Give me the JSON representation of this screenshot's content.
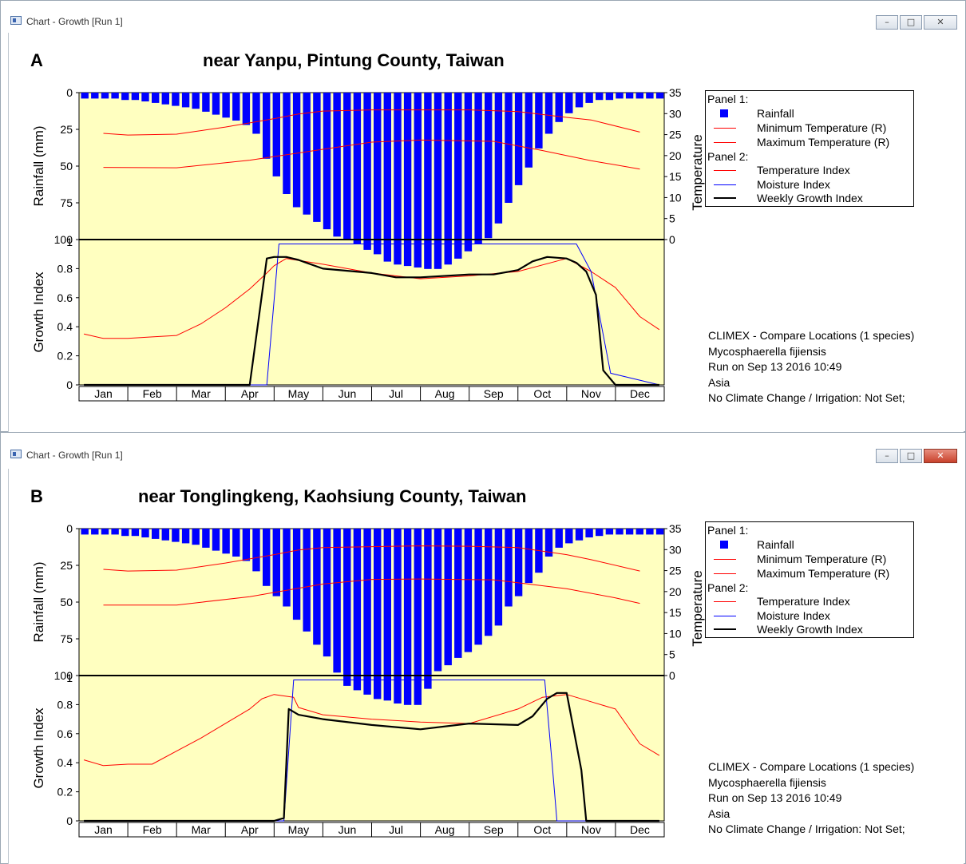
{
  "windows": [
    {
      "window_title": "Chart - Growth  [Run 1]",
      "panel_letter": "A",
      "chart_title": "near Yanpu, Pintung County, Taiwan",
      "info_lines": [
        "CLIMEX - Compare Locations (1 species)",
        "Mycosphaerella fijiensis",
        "Run on Sep 13 2016 10:49",
        "Asia",
        "No Climate Change / Irrigation: Not Set;"
      ]
    },
    {
      "window_title": "Chart - Growth  [Run 1]",
      "panel_letter": "B",
      "chart_title": "near Tonglingkeng, Kaohsiung County, Taiwan",
      "info_lines": [
        "CLIMEX - Compare Locations (1 species)",
        "Mycosphaerella fijiensis",
        "Run on Sep 13 2016 10:49",
        "Asia",
        "No Climate Change / Irrigation: Not Set;"
      ]
    }
  ],
  "legend": {
    "panel1_header": "Panel 1:",
    "panel2_header": "Panel 2:",
    "items": {
      "rainfall": "Rainfall",
      "min_temp": "Minimum Temperature (R)",
      "max_temp": "Maximum Temperature (R)",
      "temp_index": "Temperature Index",
      "moisture_index": "Moisture Index",
      "weekly_growth_index": "Weekly Growth Index"
    }
  },
  "colors": {
    "plot_bg": "#ffffc0",
    "rainfall": "#0000ff",
    "temperature": "#ff0000",
    "temperature_index": "#ff0000",
    "moisture_index": "#0000ff",
    "growth_index": "#000000"
  },
  "chart_data": [
    {
      "type": "line",
      "title": "near Yanpu, Pintung County, Taiwan",
      "categories": [
        "Jan",
        "Feb",
        "Mar",
        "Apr",
        "May",
        "Jun",
        "Jul",
        "Aug",
        "Sep",
        "Oct",
        "Nov",
        "Dec"
      ],
      "panel1": {
        "ylabel_left": "Rainfall (mm)",
        "ylim_left": [
          0,
          100
        ],
        "left_inverted": true,
        "yticks_left": [
          0,
          25,
          50,
          75,
          100
        ],
        "ylabel_right": "Temperature",
        "ylim_right": [
          0,
          35
        ],
        "yticks_right": [
          0,
          5,
          10,
          15,
          20,
          25,
          30,
          35
        ],
        "weekly_rainfall_mm": [
          4,
          4,
          4,
          4,
          5,
          5,
          6,
          7,
          8,
          9,
          10,
          11,
          13,
          15,
          17,
          19,
          22,
          28,
          45,
          57,
          69,
          78,
          83,
          88,
          93,
          98,
          100,
          103,
          107,
          110,
          115,
          117,
          118,
          119,
          120,
          120,
          117,
          113,
          108,
          103,
          99,
          89,
          75,
          63,
          51,
          38,
          28,
          20,
          14,
          10,
          7,
          5,
          5,
          4,
          4,
          4,
          4,
          4
        ],
        "series": [
          {
            "name": "Minimum Temperature (R)",
            "x_month": [
              0.5,
              2.0,
              3.5,
              5.0,
              6.0,
              7.0,
              8.5,
              9.5,
              10.5,
              11.5
            ],
            "values": [
              17.2,
              17.1,
              18.9,
              21.5,
              23.2,
              23.7,
              23.4,
              21.2,
              18.8,
              16.8
            ]
          },
          {
            "name": "Maximum Temperature (R)",
            "x_month": [
              0.5,
              1.0,
              2.0,
              3.0,
              4.0,
              4.5,
              5.0,
              6.0,
              7.0,
              8.0,
              9.0,
              10.0,
              10.5,
              11.5
            ],
            "values": [
              25.3,
              24.9,
              25.1,
              26.8,
              28.8,
              29.9,
              30.6,
              30.9,
              30.9,
              30.9,
              30.5,
              29.1,
              28.5,
              25.6
            ]
          }
        ]
      },
      "panel2": {
        "ylabel": "Growth Index",
        "ylim": [
          0,
          1
        ],
        "yticks": [
          0,
          0.2,
          0.4,
          0.6,
          0.8,
          1
        ],
        "series": [
          {
            "name": "Temperature Index",
            "x_month": [
              0.1,
              0.5,
              1.0,
              1.5,
              2.0,
              2.5,
              3.0,
              3.5,
              3.85,
              4.0,
              4.25,
              5.0,
              6.0,
              7.0,
              8.0,
              9.0,
              10.0,
              10.5,
              11.0,
              11.5,
              11.9
            ],
            "values": [
              0.35,
              0.32,
              0.32,
              0.33,
              0.34,
              0.42,
              0.53,
              0.66,
              0.77,
              0.82,
              0.87,
              0.83,
              0.77,
              0.73,
              0.75,
              0.78,
              0.87,
              0.78,
              0.67,
              0.47,
              0.38
            ]
          },
          {
            "name": "Moisture Index",
            "x_month": [
              0.1,
              3.5,
              3.85,
              4.1,
              10.0,
              10.2,
              10.5,
              10.9,
              11.9
            ],
            "values": [
              0,
              0,
              0,
              0.97,
              0.97,
              0.97,
              0.78,
              0.08,
              0
            ]
          },
          {
            "name": "Weekly Growth Index",
            "x_month": [
              0.1,
              3.5,
              3.85,
              4.0,
              4.25,
              4.5,
              5.0,
              6.0,
              6.5,
              7.0,
              8.0,
              8.5,
              9.0,
              9.3,
              9.6,
              10.0,
              10.2,
              10.4,
              10.6,
              10.75,
              11.0,
              11.9
            ],
            "values": [
              0,
              0,
              0.87,
              0.88,
              0.88,
              0.86,
              0.8,
              0.77,
              0.74,
              0.74,
              0.76,
              0.76,
              0.79,
              0.85,
              0.88,
              0.87,
              0.84,
              0.78,
              0.62,
              0.1,
              0,
              0
            ]
          }
        ]
      },
      "legend_position": "top-right"
    },
    {
      "type": "line",
      "title": "near Tonglingkeng, Kaohsiung County, Taiwan",
      "categories": [
        "Jan",
        "Feb",
        "Mar",
        "Apr",
        "May",
        "Jun",
        "Jul",
        "Aug",
        "Sep",
        "Oct",
        "Nov",
        "Dec"
      ],
      "panel1": {
        "ylabel_left": "Rainfall (mm)",
        "ylim_left": [
          0,
          100
        ],
        "left_inverted": true,
        "yticks_left": [
          0,
          25,
          50,
          75,
          100
        ],
        "ylabel_right": "Temperature",
        "ylim_right": [
          0,
          35
        ],
        "yticks_right": [
          0,
          5,
          10,
          15,
          20,
          25,
          30,
          35
        ],
        "weekly_rainfall_mm": [
          4,
          4,
          4,
          4,
          5,
          5,
          6,
          7,
          8,
          9,
          10,
          11,
          13,
          15,
          17,
          19,
          22,
          29,
          39,
          46,
          53,
          62,
          70,
          79,
          87,
          98,
          107,
          110,
          113,
          116,
          117,
          119,
          120,
          120,
          109,
          97,
          93,
          88,
          84,
          79,
          73,
          66,
          53,
          46,
          37,
          30,
          19,
          13,
          10,
          8,
          6,
          5,
          4,
          4,
          4,
          4,
          4,
          4
        ],
        "series": [
          {
            "name": "Minimum Temperature (R)",
            "x_month": [
              0.5,
              2.0,
              3.5,
              5.0,
              6.0,
              7.0,
              8.5,
              10.0,
              11.0,
              11.5
            ],
            "values": [
              16.8,
              16.8,
              18.8,
              21.8,
              22.9,
              23.0,
              22.8,
              20.7,
              18.5,
              17.2
            ]
          },
          {
            "name": "Maximum Temperature (R)",
            "x_month": [
              0.5,
              1.0,
              2.0,
              3.0,
              4.0,
              4.5,
              5.0,
              6.0,
              7.0,
              8.0,
              9.0,
              10.0,
              10.5,
              11.5
            ],
            "values": [
              25.3,
              24.9,
              25.1,
              26.8,
              28.8,
              29.9,
              30.5,
              30.7,
              30.9,
              30.8,
              30.5,
              28.8,
              27.6,
              24.9
            ]
          }
        ]
      },
      "panel2": {
        "ylabel": "Growth Index",
        "ylim": [
          0,
          1
        ],
        "yticks": [
          0,
          0.2,
          0.4,
          0.6,
          0.8,
          1
        ],
        "series": [
          {
            "name": "Temperature Index",
            "x_month": [
              0.1,
              0.5,
              1.0,
              1.5,
              2.0,
              2.5,
              3.0,
              3.5,
              3.75,
              4.0,
              4.4,
              4.5,
              5.0,
              6.0,
              7.0,
              8.0,
              9.0,
              9.5,
              10.0,
              10.5,
              11.0,
              11.5,
              11.9
            ],
            "values": [
              0.42,
              0.38,
              0.39,
              0.39,
              0.48,
              0.57,
              0.67,
              0.77,
              0.84,
              0.87,
              0.85,
              0.78,
              0.73,
              0.7,
              0.68,
              0.67,
              0.77,
              0.85,
              0.87,
              0.82,
              0.77,
              0.53,
              0.45
            ]
          },
          {
            "name": "Moisture Index",
            "x_month": [
              0.1,
              4.2,
              4.4,
              9.55,
              9.7,
              9.8,
              11.9
            ],
            "values": [
              0,
              0,
              0.97,
              0.97,
              0.4,
              0,
              0
            ]
          },
          {
            "name": "Weekly Growth Index",
            "x_month": [
              0.1,
              4.0,
              4.2,
              4.3,
              4.5,
              5.0,
              6.0,
              7.0,
              8.0,
              9.0,
              9.3,
              9.6,
              9.8,
              10.0,
              10.3,
              10.4,
              10.6,
              11.9
            ],
            "values": [
              0,
              0,
              0.02,
              0.77,
              0.73,
              0.7,
              0.66,
              0.63,
              0.67,
              0.66,
              0.72,
              0.84,
              0.88,
              0.88,
              0.35,
              0,
              0,
              0
            ]
          }
        ]
      },
      "legend_position": "top-right"
    }
  ]
}
